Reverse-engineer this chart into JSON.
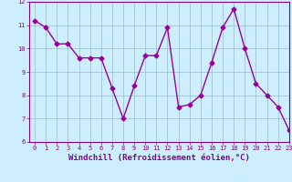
{
  "x": [
    0,
    1,
    2,
    3,
    4,
    5,
    6,
    7,
    8,
    9,
    10,
    11,
    12,
    13,
    14,
    15,
    16,
    17,
    18,
    19,
    20,
    21,
    22,
    23
  ],
  "y": [
    11.2,
    10.9,
    10.2,
    10.2,
    9.6,
    9.6,
    9.6,
    8.3,
    7.0,
    8.4,
    9.7,
    9.7,
    10.9,
    7.5,
    7.6,
    8.0,
    9.4,
    10.9,
    11.7,
    10.0,
    8.5,
    8.0,
    7.5,
    6.5
  ],
  "line_color": "#990099",
  "marker": "D",
  "marker_size": 2.5,
  "bg_color": "#cceeff",
  "grid_color": "#99bbcc",
  "xlabel": "Windchill (Refroidissement éolien,°C)",
  "ylim": [
    6,
    12
  ],
  "xlim": [
    -0.5,
    23
  ],
  "yticks": [
    6,
    7,
    8,
    9,
    10,
    11,
    12
  ],
  "xticks": [
    0,
    1,
    2,
    3,
    4,
    5,
    6,
    7,
    8,
    9,
    10,
    11,
    12,
    13,
    14,
    15,
    16,
    17,
    18,
    19,
    20,
    21,
    22,
    23
  ],
  "tick_color": "#880088",
  "xlabel_fontsize": 6.5,
  "tick_fontsize": 5.0,
  "spine_color": "#880088",
  "linewidth": 1.0
}
